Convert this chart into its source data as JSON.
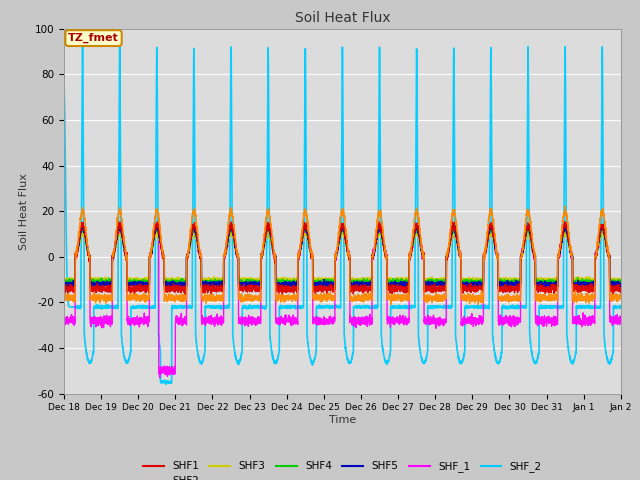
{
  "title": "Soil Heat Flux",
  "ylabel": "Soil Heat Flux",
  "xlabel": "Time",
  "ylim": [
    -60,
    100
  ],
  "series": {
    "SHF1": {
      "color": "#dd0000",
      "lw": 1.0
    },
    "SHF2": {
      "color": "#ff8800",
      "lw": 1.0
    },
    "SHF3": {
      "color": "#cccc00",
      "lw": 1.0
    },
    "SHF4": {
      "color": "#00cc00",
      "lw": 1.0
    },
    "SHF5": {
      "color": "#0000bb",
      "lw": 1.2
    },
    "SHF_1": {
      "color": "#ff00ff",
      "lw": 1.0
    },
    "SHF_2": {
      "color": "#00ccff",
      "lw": 1.2
    }
  },
  "annotation_text": "TZ_fmet",
  "annotation_bg": "#ffffcc",
  "annotation_border": "#cc8800",
  "tick_labels": [
    "Dec 18",
    "Dec 19",
    "Dec 20",
    "Dec 21",
    "Dec 22",
    "Dec 23",
    "Dec 24",
    "Dec 25",
    "Dec 26",
    "Dec 27",
    "Dec 28",
    "Dec 29",
    "Dec 30",
    "Dec 31",
    "Jan 1",
    "Jan 2"
  ],
  "yticks": [
    -60,
    -40,
    -20,
    0,
    20,
    40,
    60,
    80,
    100
  ],
  "fig_bg": "#c8c8c8",
  "plot_bg": "#dcdcdc"
}
